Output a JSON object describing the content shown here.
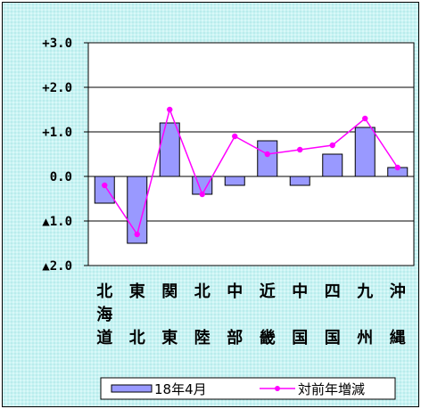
{
  "chart_data": {
    "type": "bar",
    "categories": [
      "北海道",
      "東北",
      "関東",
      "北陸",
      "中部",
      "近畿",
      "中国",
      "四国",
      "九州",
      "沖縄"
    ],
    "category_lines": [
      [
        "北",
        "海",
        "道"
      ],
      [
        "東",
        "",
        "北"
      ],
      [
        "関",
        "",
        "東"
      ],
      [
        "北",
        "",
        "陸"
      ],
      [
        "中",
        "",
        "部"
      ],
      [
        "近",
        "",
        "畿"
      ],
      [
        "中",
        "",
        "国"
      ],
      [
        "四",
        "",
        "国"
      ],
      [
        "九",
        "",
        "州"
      ],
      [
        "沖",
        "",
        "縄"
      ]
    ],
    "series": [
      {
        "name": "18年4月",
        "kind": "bar",
        "color": "#9999ff",
        "values": [
          -0.6,
          -1.5,
          1.2,
          -0.4,
          -0.2,
          0.8,
          -0.2,
          0.5,
          1.1,
          0.2
        ]
      },
      {
        "name": "対前年増減",
        "kind": "line",
        "color": "#ff00ff",
        "values": [
          -0.2,
          -1.3,
          1.5,
          -0.4,
          0.9,
          0.5,
          0.6,
          0.7,
          1.3,
          0.2
        ]
      }
    ],
    "y_ticks": [
      {
        "value": 3,
        "label": "+3.0"
      },
      {
        "value": 2,
        "label": "+2.0"
      },
      {
        "value": 1,
        "label": "+1.0"
      },
      {
        "value": 0,
        "label": "0.0"
      },
      {
        "value": -1,
        "label": "▲1.0"
      },
      {
        "value": -2,
        "label": "▲2.0"
      }
    ],
    "ylim": [
      -2,
      3
    ],
    "grid": true,
    "legend_position": "bottom",
    "colors": {
      "plot_bg": "#ffffff",
      "chart_bg": "#c9f3f3",
      "axis": "#000000"
    }
  }
}
